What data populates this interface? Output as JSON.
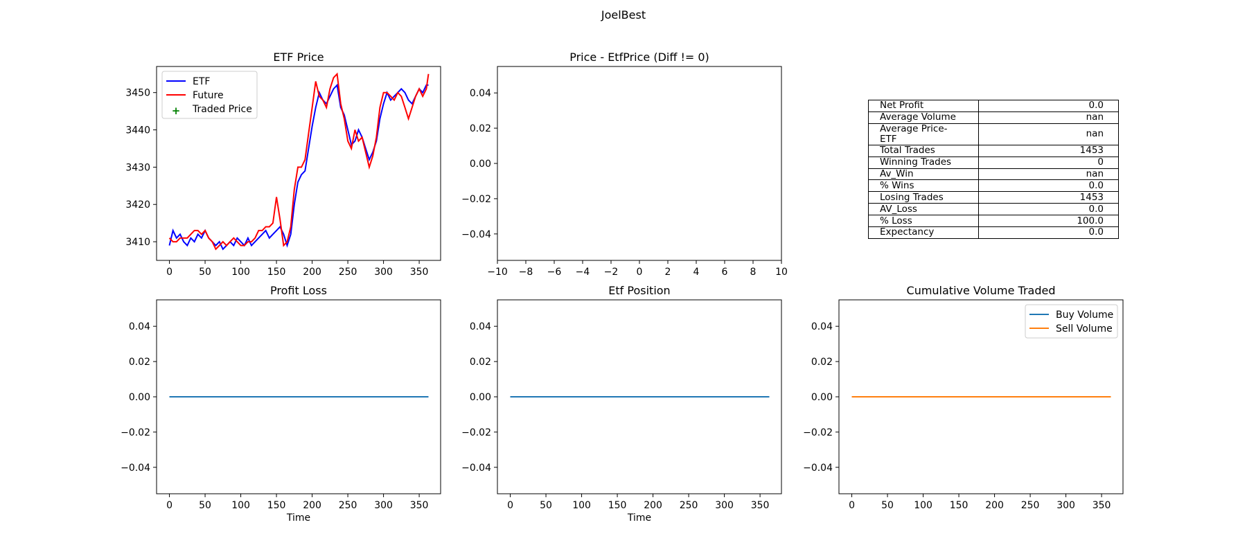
{
  "figure_title": "JoelBest",
  "chart_data": [
    {
      "type": "line",
      "title": "ETF Price",
      "xlabel": "",
      "ylabel": "",
      "xlim": [
        -18,
        380
      ],
      "ylim": [
        3405,
        3457
      ],
      "xticks": [
        0,
        50,
        100,
        150,
        200,
        250,
        300,
        350
      ],
      "yticks": [
        3410,
        3420,
        3430,
        3440,
        3450
      ],
      "legend_position": "upper-left",
      "grid": false,
      "series": [
        {
          "name": "ETF",
          "color": "#0000ff",
          "x": [
            0,
            5,
            10,
            15,
            20,
            25,
            30,
            35,
            40,
            45,
            50,
            55,
            60,
            65,
            70,
            75,
            80,
            85,
            90,
            95,
            100,
            105,
            110,
            115,
            120,
            125,
            130,
            135,
            140,
            145,
            150,
            155,
            160,
            165,
            170,
            175,
            180,
            185,
            190,
            195,
            200,
            205,
            210,
            215,
            220,
            225,
            230,
            235,
            240,
            245,
            250,
            255,
            260,
            265,
            270,
            275,
            280,
            285,
            290,
            295,
            300,
            305,
            310,
            315,
            320,
            325,
            330,
            335,
            340,
            345,
            350,
            355,
            360,
            363
          ],
          "y": [
            3409,
            3413,
            3411,
            3412,
            3410,
            3409,
            3411,
            3410,
            3412,
            3411,
            3413,
            3411,
            3410,
            3409,
            3410,
            3408,
            3409,
            3410,
            3409,
            3411,
            3410,
            3409,
            3411,
            3409,
            3410,
            3411,
            3412,
            3413,
            3411,
            3412,
            3413,
            3414,
            3412,
            3409,
            3412,
            3420,
            3426,
            3428,
            3429,
            3435,
            3441,
            3446,
            3450,
            3448,
            3447,
            3449,
            3451,
            3452,
            3446,
            3444,
            3440,
            3436,
            3437,
            3440,
            3438,
            3435,
            3432,
            3434,
            3437,
            3443,
            3447,
            3450,
            3448,
            3449,
            3450,
            3451,
            3450,
            3448,
            3447,
            3449,
            3451,
            3450,
            3452,
            3452
          ]
        },
        {
          "name": "Future",
          "color": "#ff0000",
          "x": [
            0,
            5,
            10,
            15,
            20,
            25,
            30,
            35,
            40,
            45,
            50,
            55,
            60,
            65,
            70,
            75,
            80,
            85,
            90,
            95,
            100,
            105,
            110,
            115,
            120,
            125,
            130,
            135,
            140,
            145,
            150,
            155,
            160,
            165,
            170,
            175,
            180,
            185,
            190,
            195,
            200,
            205,
            210,
            215,
            220,
            225,
            230,
            235,
            240,
            245,
            250,
            255,
            260,
            265,
            270,
            275,
            280,
            285,
            290,
            295,
            300,
            305,
            310,
            315,
            320,
            325,
            330,
            335,
            340,
            345,
            350,
            355,
            360,
            363
          ],
          "y": [
            3411,
            3410,
            3410,
            3411,
            3411,
            3411,
            3412,
            3413,
            3413,
            3412,
            3413,
            3411,
            3410,
            3408,
            3409,
            3410,
            3409,
            3410,
            3411,
            3410,
            3409,
            3409,
            3410,
            3410,
            3411,
            3413,
            3413,
            3414,
            3414,
            3415,
            3422,
            3416,
            3409,
            3410,
            3414,
            3424,
            3430,
            3430,
            3432,
            3439,
            3446,
            3453,
            3449,
            3448,
            3446,
            3451,
            3454,
            3455,
            3447,
            3443,
            3437,
            3435,
            3440,
            3437,
            3438,
            3434,
            3430,
            3433,
            3438,
            3446,
            3450,
            3450,
            3449,
            3448,
            3450,
            3449,
            3446,
            3443,
            3446,
            3449,
            3451,
            3449,
            3451,
            3455
          ]
        },
        {
          "name": "Traded Price",
          "color": "#008000",
          "marker": "+",
          "x": [],
          "y": []
        }
      ]
    },
    {
      "type": "line",
      "title": "Price - EtfPrice (Diff != 0)",
      "xlabel": "",
      "ylabel": "",
      "xlim": [
        -10,
        10
      ],
      "ylim": [
        -0.055,
        0.055
      ],
      "xticks": [
        -10,
        -8,
        -6,
        -4,
        -2,
        0,
        2,
        4,
        6,
        8,
        10
      ],
      "yticks": [
        -0.04,
        -0.02,
        0.0,
        0.02,
        0.04
      ],
      "xtick_labels": [
        "−10",
        "−8",
        "−6",
        "−4",
        "−2",
        "0",
        "2",
        "4",
        "6",
        "8",
        "10"
      ],
      "ytick_labels": [
        "−0.04",
        "−0.02",
        "0.00",
        "0.02",
        "0.04"
      ],
      "series": []
    },
    {
      "type": "line",
      "title": "Profit Loss",
      "xlabel": "Time",
      "ylabel": "",
      "xlim": [
        -18,
        380
      ],
      "ylim": [
        -0.055,
        0.055
      ],
      "xticks": [
        0,
        50,
        100,
        150,
        200,
        250,
        300,
        350
      ],
      "yticks": [
        -0.04,
        -0.02,
        0.0,
        0.02,
        0.04
      ],
      "ytick_labels": [
        "−0.04",
        "−0.02",
        "0.00",
        "0.02",
        "0.04"
      ],
      "series": [
        {
          "name": "",
          "color": "#1f77b4",
          "x": [
            0,
            363
          ],
          "y": [
            0.0,
            0.0
          ]
        }
      ]
    },
    {
      "type": "line",
      "title": "Etf Position",
      "xlabel": "Time",
      "ylabel": "",
      "xlim": [
        -18,
        380
      ],
      "ylim": [
        -0.055,
        0.055
      ],
      "xticks": [
        0,
        50,
        100,
        150,
        200,
        250,
        300,
        350
      ],
      "yticks": [
        -0.04,
        -0.02,
        0.0,
        0.02,
        0.04
      ],
      "ytick_labels": [
        "−0.04",
        "−0.02",
        "0.00",
        "0.02",
        "0.04"
      ],
      "series": [
        {
          "name": "",
          "color": "#1f77b4",
          "x": [
            0,
            363
          ],
          "y": [
            0.0,
            0.0
          ]
        }
      ]
    },
    {
      "type": "line",
      "title": "Cumulative Volume Traded",
      "xlabel": "",
      "ylabel": "",
      "xlim": [
        -18,
        380
      ],
      "ylim": [
        -0.055,
        0.055
      ],
      "xticks": [
        0,
        50,
        100,
        150,
        200,
        250,
        300,
        350
      ],
      "yticks": [
        -0.04,
        -0.02,
        0.0,
        0.02,
        0.04
      ],
      "ytick_labels": [
        "−0.04",
        "−0.02",
        "0.00",
        "0.02",
        "0.04"
      ],
      "legend_position": "upper-right",
      "series": [
        {
          "name": "Buy Volume",
          "color": "#1f77b4",
          "x": [
            0,
            363
          ],
          "y": [
            0.0,
            0.0
          ]
        },
        {
          "name": "Sell Volume",
          "color": "#ff7f0e",
          "x": [
            0,
            363
          ],
          "y": [
            0.0,
            0.0
          ]
        }
      ]
    },
    {
      "type": "table",
      "rows": [
        [
          "Net Profit",
          "0.0"
        ],
        [
          "Average Volume",
          "nan"
        ],
        [
          "Average Price- ETF",
          "nan"
        ],
        [
          "Total Trades",
          "1453"
        ],
        [
          "Winning Trades",
          "0"
        ],
        [
          "Av_Win",
          "nan"
        ],
        [
          "% Wins",
          "0.0"
        ],
        [
          "Losing Trades",
          "1453"
        ],
        [
          "AV_Loss",
          "0.0"
        ],
        [
          "% Loss",
          "100.0"
        ],
        [
          "Expectancy",
          "0.0"
        ]
      ]
    }
  ]
}
